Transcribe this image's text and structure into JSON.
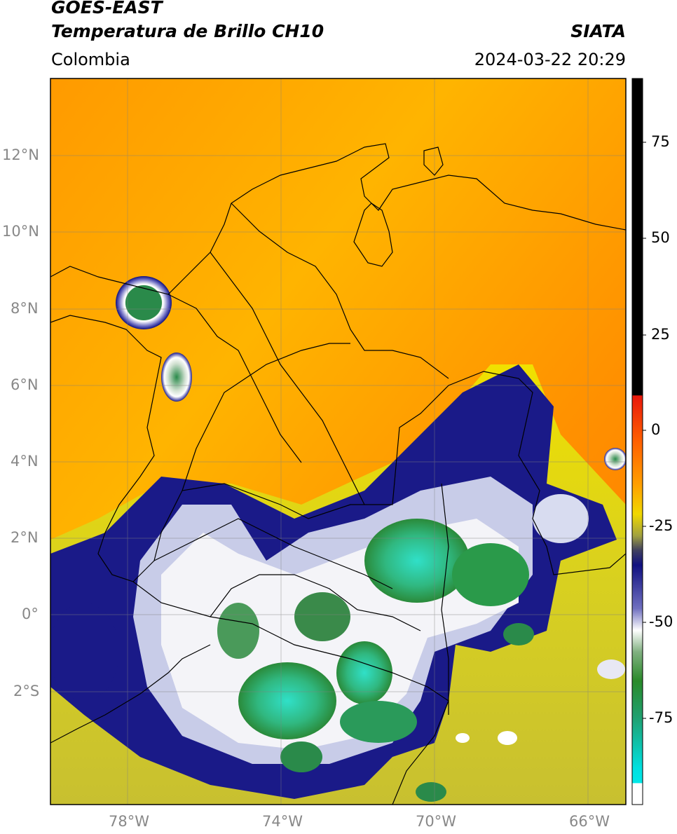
{
  "header": {
    "satellite": "GOES-EAST",
    "product": "Temperatura de Brillo CH10",
    "region": "Colombia",
    "agency": "SIATA",
    "timestamp": "2024-03-22 20:29"
  },
  "map": {
    "lat_ticks": [
      "12°N",
      "10°N",
      "8°N",
      "6°N",
      "4°N",
      "2°N",
      "0°",
      "2°S"
    ],
    "lon_ticks": [
      "78°W",
      "74°W",
      "70°W",
      "66°W"
    ],
    "extent": {
      "lon_min": -80,
      "lon_max": -65,
      "lat_min": -5,
      "lat_max": 14
    },
    "gridlines": true
  },
  "colorbar": {
    "ticks": [
      "75",
      "50",
      "25",
      "0",
      "-25",
      "-50",
      "-75"
    ],
    "range": [
      -100,
      90
    ],
    "colors": {
      "black": "#000000",
      "red": "#e8180c",
      "orange": "#ff8c00",
      "yellow": "#e8e000",
      "olive": "#a0a040",
      "navy": "#101080",
      "white": "#ffffff",
      "green": "#2a8a2a",
      "teal": "#20c0a0",
      "cyan": "#00e0e0"
    }
  }
}
